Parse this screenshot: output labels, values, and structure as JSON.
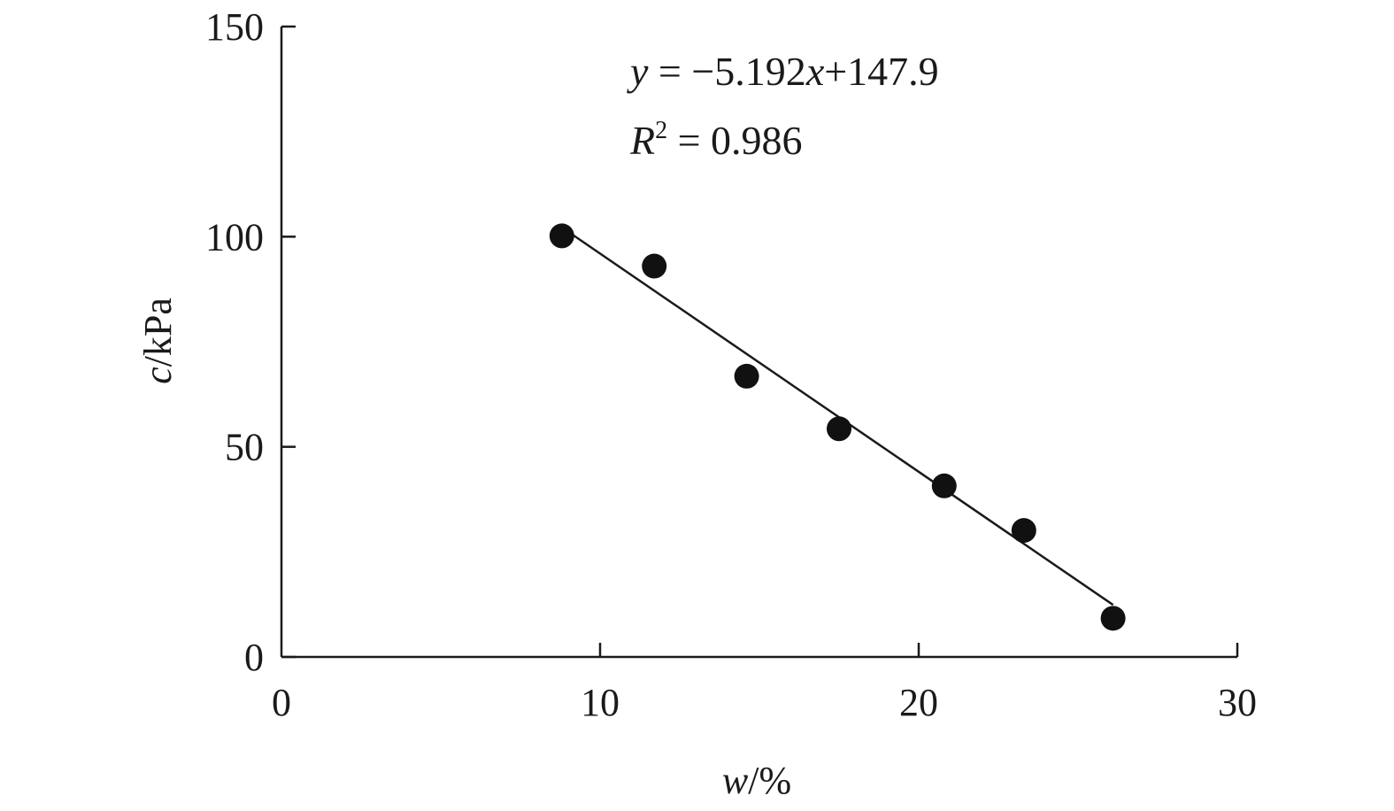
{
  "chart_data": {
    "type": "scatter",
    "xlabel": {
      "var": "w",
      "unit": "/%"
    },
    "ylabel": {
      "var": "c",
      "unit": "/kPa"
    },
    "xlim": [
      0,
      30
    ],
    "ylim": [
      0,
      150
    ],
    "xticks": [
      0,
      10,
      20,
      30
    ],
    "yticks": [
      0,
      50,
      100,
      150
    ],
    "xtick_labels": [
      "0",
      "10",
      "20",
      "30"
    ],
    "ytick_labels": [
      "0",
      "50",
      "100",
      "150"
    ],
    "grid": false,
    "legend": "none",
    "points": [
      {
        "x": 8.8,
        "y": 100.2
      },
      {
        "x": 11.7,
        "y": 93.0
      },
      {
        "x": 14.6,
        "y": 66.8
      },
      {
        "x": 17.5,
        "y": 54.3
      },
      {
        "x": 20.8,
        "y": 40.7
      },
      {
        "x": 23.3,
        "y": 30.1
      },
      {
        "x": 26.1,
        "y": 9.2
      }
    ],
    "fit": {
      "slope": -5.192,
      "intercept": 147.9,
      "x_range": [
        9.0,
        26.1
      ]
    },
    "annotations": {
      "equation": {
        "y": "y",
        "eq": " = −5.192",
        "x": "x",
        "rest": "+147.9"
      },
      "r2": {
        "r": "R",
        "sup": "2",
        "rest": " = 0.986"
      }
    },
    "colors": {
      "marker": "#111111",
      "line": "#1a1a1a"
    }
  }
}
